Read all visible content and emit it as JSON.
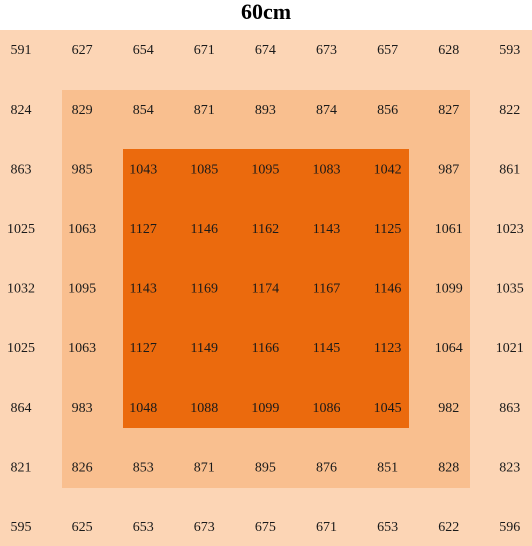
{
  "title": "60cm",
  "table": {
    "rows": [
      [
        591,
        627,
        654,
        671,
        674,
        673,
        657,
        628,
        593
      ],
      [
        824,
        829,
        854,
        871,
        893,
        874,
        856,
        827,
        822
      ],
      [
        863,
        985,
        1043,
        1085,
        1095,
        1083,
        1042,
        987,
        861
      ],
      [
        1025,
        1063,
        1127,
        1146,
        1162,
        1143,
        1125,
        1061,
        1023
      ],
      [
        1032,
        1095,
        1143,
        1169,
        1174,
        1167,
        1146,
        1099,
        1035
      ],
      [
        1025,
        1063,
        1127,
        1149,
        1166,
        1145,
        1123,
        1064,
        1021
      ],
      [
        864,
        983,
        1048,
        1088,
        1099,
        1086,
        1045,
        982,
        863
      ],
      [
        821,
        826,
        853,
        871,
        895,
        876,
        851,
        828,
        823
      ],
      [
        595,
        625,
        653,
        673,
        675,
        671,
        653,
        622,
        596
      ]
    ]
  }
}
